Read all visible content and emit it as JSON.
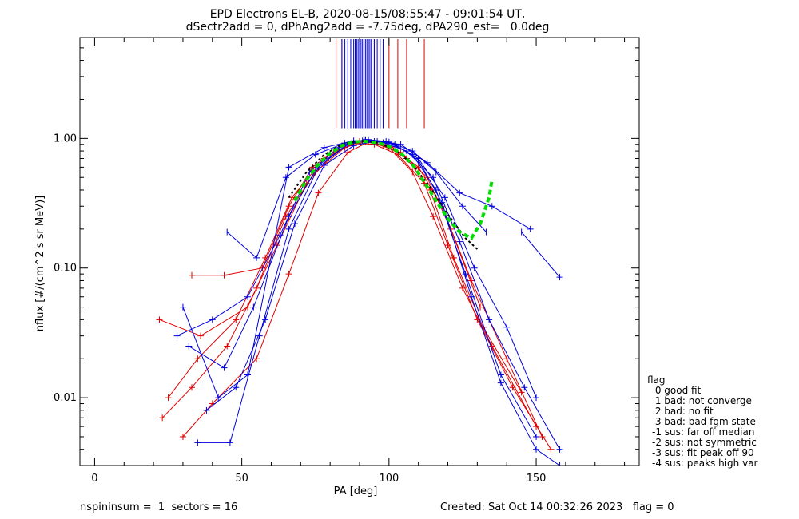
{
  "title_line1": "EPD Electrons EL-B, 2020-08-15/08:55:47 - 09:01:54 UT,",
  "title_line2": "dSectr2add = 0, dPhAng2add = -7.75deg, dPA290_est=   0.0deg",
  "footer": {
    "left": "nspininsum =  1  sectors = 16",
    "right": "Created: Sat Oct 14 00:32:26 2023   flag = 0"
  },
  "legend": {
    "title": "flag",
    "items": [
      " 0 good fit",
      " 1 bad: not converge",
      " 2 bad: no fit",
      " 3 bad: bad fgm state",
      "-1 sus: far off median",
      "-2 sus: not symmetric",
      "-3 sus: fit peak off 90",
      "-4 sus: peaks high var"
    ]
  },
  "colors": {
    "red": "#e00000",
    "blue": "#0000dd",
    "green": "#00dd00",
    "black": "#000000"
  },
  "chart_data": {
    "type": "line",
    "xlabel": "PA [deg]",
    "ylabel": "nflux [#/(cm^2 s sr MeV)]",
    "xlim": [
      -5,
      185
    ],
    "ylim": [
      0.003,
      6.0
    ],
    "yscale": "log",
    "xticks": [
      0,
      50,
      100,
      150
    ],
    "yticks": [
      0.01,
      0.1,
      1.0
    ],
    "ytick_labels": [
      "0.01",
      "0.10",
      "1.00"
    ],
    "series": [
      {
        "color": "red",
        "x": [
          23,
          33,
          45,
          55,
          65,
          75,
          85,
          92,
          100,
          108,
          115,
          125,
          135,
          150
        ],
        "y": [
          0.007,
          0.012,
          0.025,
          0.07,
          0.25,
          0.55,
          0.85,
          0.95,
          0.85,
          0.55,
          0.25,
          0.07,
          0.025,
          0.006
        ]
      },
      {
        "color": "red",
        "x": [
          25,
          35,
          48,
          58,
          67,
          78,
          88,
          95,
          103,
          112,
          120,
          130,
          142,
          155
        ],
        "y": [
          0.01,
          0.02,
          0.04,
          0.12,
          0.35,
          0.7,
          0.92,
          0.9,
          0.75,
          0.45,
          0.15,
          0.04,
          0.012,
          0.004
        ]
      },
      {
        "color": "red",
        "x": [
          22,
          36,
          52,
          62,
          72,
          82,
          90,
          98,
          106,
          114,
          122,
          132,
          145
        ],
        "y": [
          0.04,
          0.03,
          0.05,
          0.15,
          0.45,
          0.8,
          0.95,
          0.9,
          0.7,
          0.4,
          0.12,
          0.035,
          0.011
        ]
      },
      {
        "color": "red",
        "x": [
          30,
          40,
          55,
          66,
          76,
          86,
          93,
          101,
          110,
          118,
          128,
          140,
          152
        ],
        "y": [
          0.005,
          0.009,
          0.02,
          0.09,
          0.38,
          0.78,
          0.94,
          0.86,
          0.6,
          0.3,
          0.08,
          0.02,
          0.005
        ]
      },
      {
        "color": "red",
        "x": [
          33,
          44,
          57,
          66,
          74,
          84,
          92,
          104,
          113,
          121,
          131
        ],
        "y": [
          0.088,
          0.088,
          0.1,
          0.3,
          0.6,
          0.88,
          0.97,
          0.78,
          0.5,
          0.2,
          0.05
        ]
      },
      {
        "color": "blue",
        "x": [
          35,
          46,
          56,
          66,
          76,
          86,
          92,
          99,
          108,
          116,
          126,
          138,
          150
        ],
        "y": [
          0.0045,
          0.0045,
          0.03,
          0.2,
          0.6,
          0.9,
          0.98,
          0.95,
          0.75,
          0.4,
          0.09,
          0.015,
          0.005
        ]
      },
      {
        "color": "blue",
        "x": [
          28,
          40,
          52,
          63,
          73,
          83,
          91,
          98,
          106,
          115,
          124,
          134,
          146,
          158
        ],
        "y": [
          0.03,
          0.04,
          0.06,
          0.18,
          0.55,
          0.85,
          0.96,
          0.93,
          0.8,
          0.5,
          0.16,
          0.04,
          0.012,
          0.004
        ]
      },
      {
        "color": "blue",
        "x": [
          45,
          55,
          65,
          75,
          85,
          92,
          100,
          108,
          116,
          125,
          133,
          145,
          158
        ],
        "y": [
          0.19,
          0.12,
          0.5,
          0.75,
          0.92,
          0.97,
          0.94,
          0.8,
          0.55,
          0.3,
          0.19,
          0.19,
          0.085
        ]
      },
      {
        "color": "blue",
        "x": [
          32,
          44,
          54,
          66,
          76,
          86,
          93,
          101,
          110,
          119,
          129,
          140,
          150
        ],
        "y": [
          0.025,
          0.017,
          0.05,
          0.25,
          0.62,
          0.9,
          0.98,
          0.92,
          0.7,
          0.35,
          0.1,
          0.035,
          0.01
        ]
      },
      {
        "color": "blue",
        "x": [
          30,
          42,
          52,
          66,
          78,
          88,
          96,
          104,
          113,
          124,
          135,
          148
        ],
        "y": [
          0.05,
          0.01,
          0.015,
          0.6,
          0.85,
          0.96,
          0.95,
          0.9,
          0.65,
          0.38,
          0.3,
          0.2
        ]
      },
      {
        "color": "blue",
        "x": [
          38,
          48,
          58,
          68,
          78,
          88,
          95,
          102,
          110,
          118,
          128,
          138,
          150,
          158
        ],
        "y": [
          0.008,
          0.012,
          0.04,
          0.22,
          0.62,
          0.88,
          0.95,
          0.9,
          0.68,
          0.32,
          0.06,
          0.013,
          0.004,
          0.003
        ]
      }
    ],
    "fit_curve": {
      "color": "green",
      "x": [
        68,
        72,
        76,
        80,
        84,
        88,
        92,
        96,
        100,
        104,
        108,
        112,
        116,
        120,
        124,
        128,
        131,
        134,
        135
      ],
      "y": [
        0.33,
        0.48,
        0.63,
        0.77,
        0.88,
        0.94,
        0.95,
        0.93,
        0.87,
        0.77,
        0.63,
        0.46,
        0.33,
        0.24,
        0.19,
        0.17,
        0.22,
        0.35,
        0.48
      ]
    },
    "median_curve": {
      "color": "black",
      "x": [
        66,
        72,
        78,
        84,
        90,
        96,
        102,
        108,
        114,
        120,
        126,
        130
      ],
      "y": [
        0.35,
        0.55,
        0.75,
        0.9,
        0.96,
        0.93,
        0.82,
        0.63,
        0.42,
        0.26,
        0.17,
        0.14
      ]
    },
    "vertical_markers": [
      {
        "color": "red",
        "x": [
          82,
          84,
          95,
          100,
          103,
          106,
          112
        ]
      },
      {
        "color": "blue",
        "x": [
          84,
          85,
          86,
          87,
          88,
          88.5,
          89,
          89.5,
          90,
          90.5,
          91,
          91.5,
          92,
          92.5,
          93,
          93.5,
          94,
          95,
          96,
          97,
          98
        ]
      }
    ]
  }
}
